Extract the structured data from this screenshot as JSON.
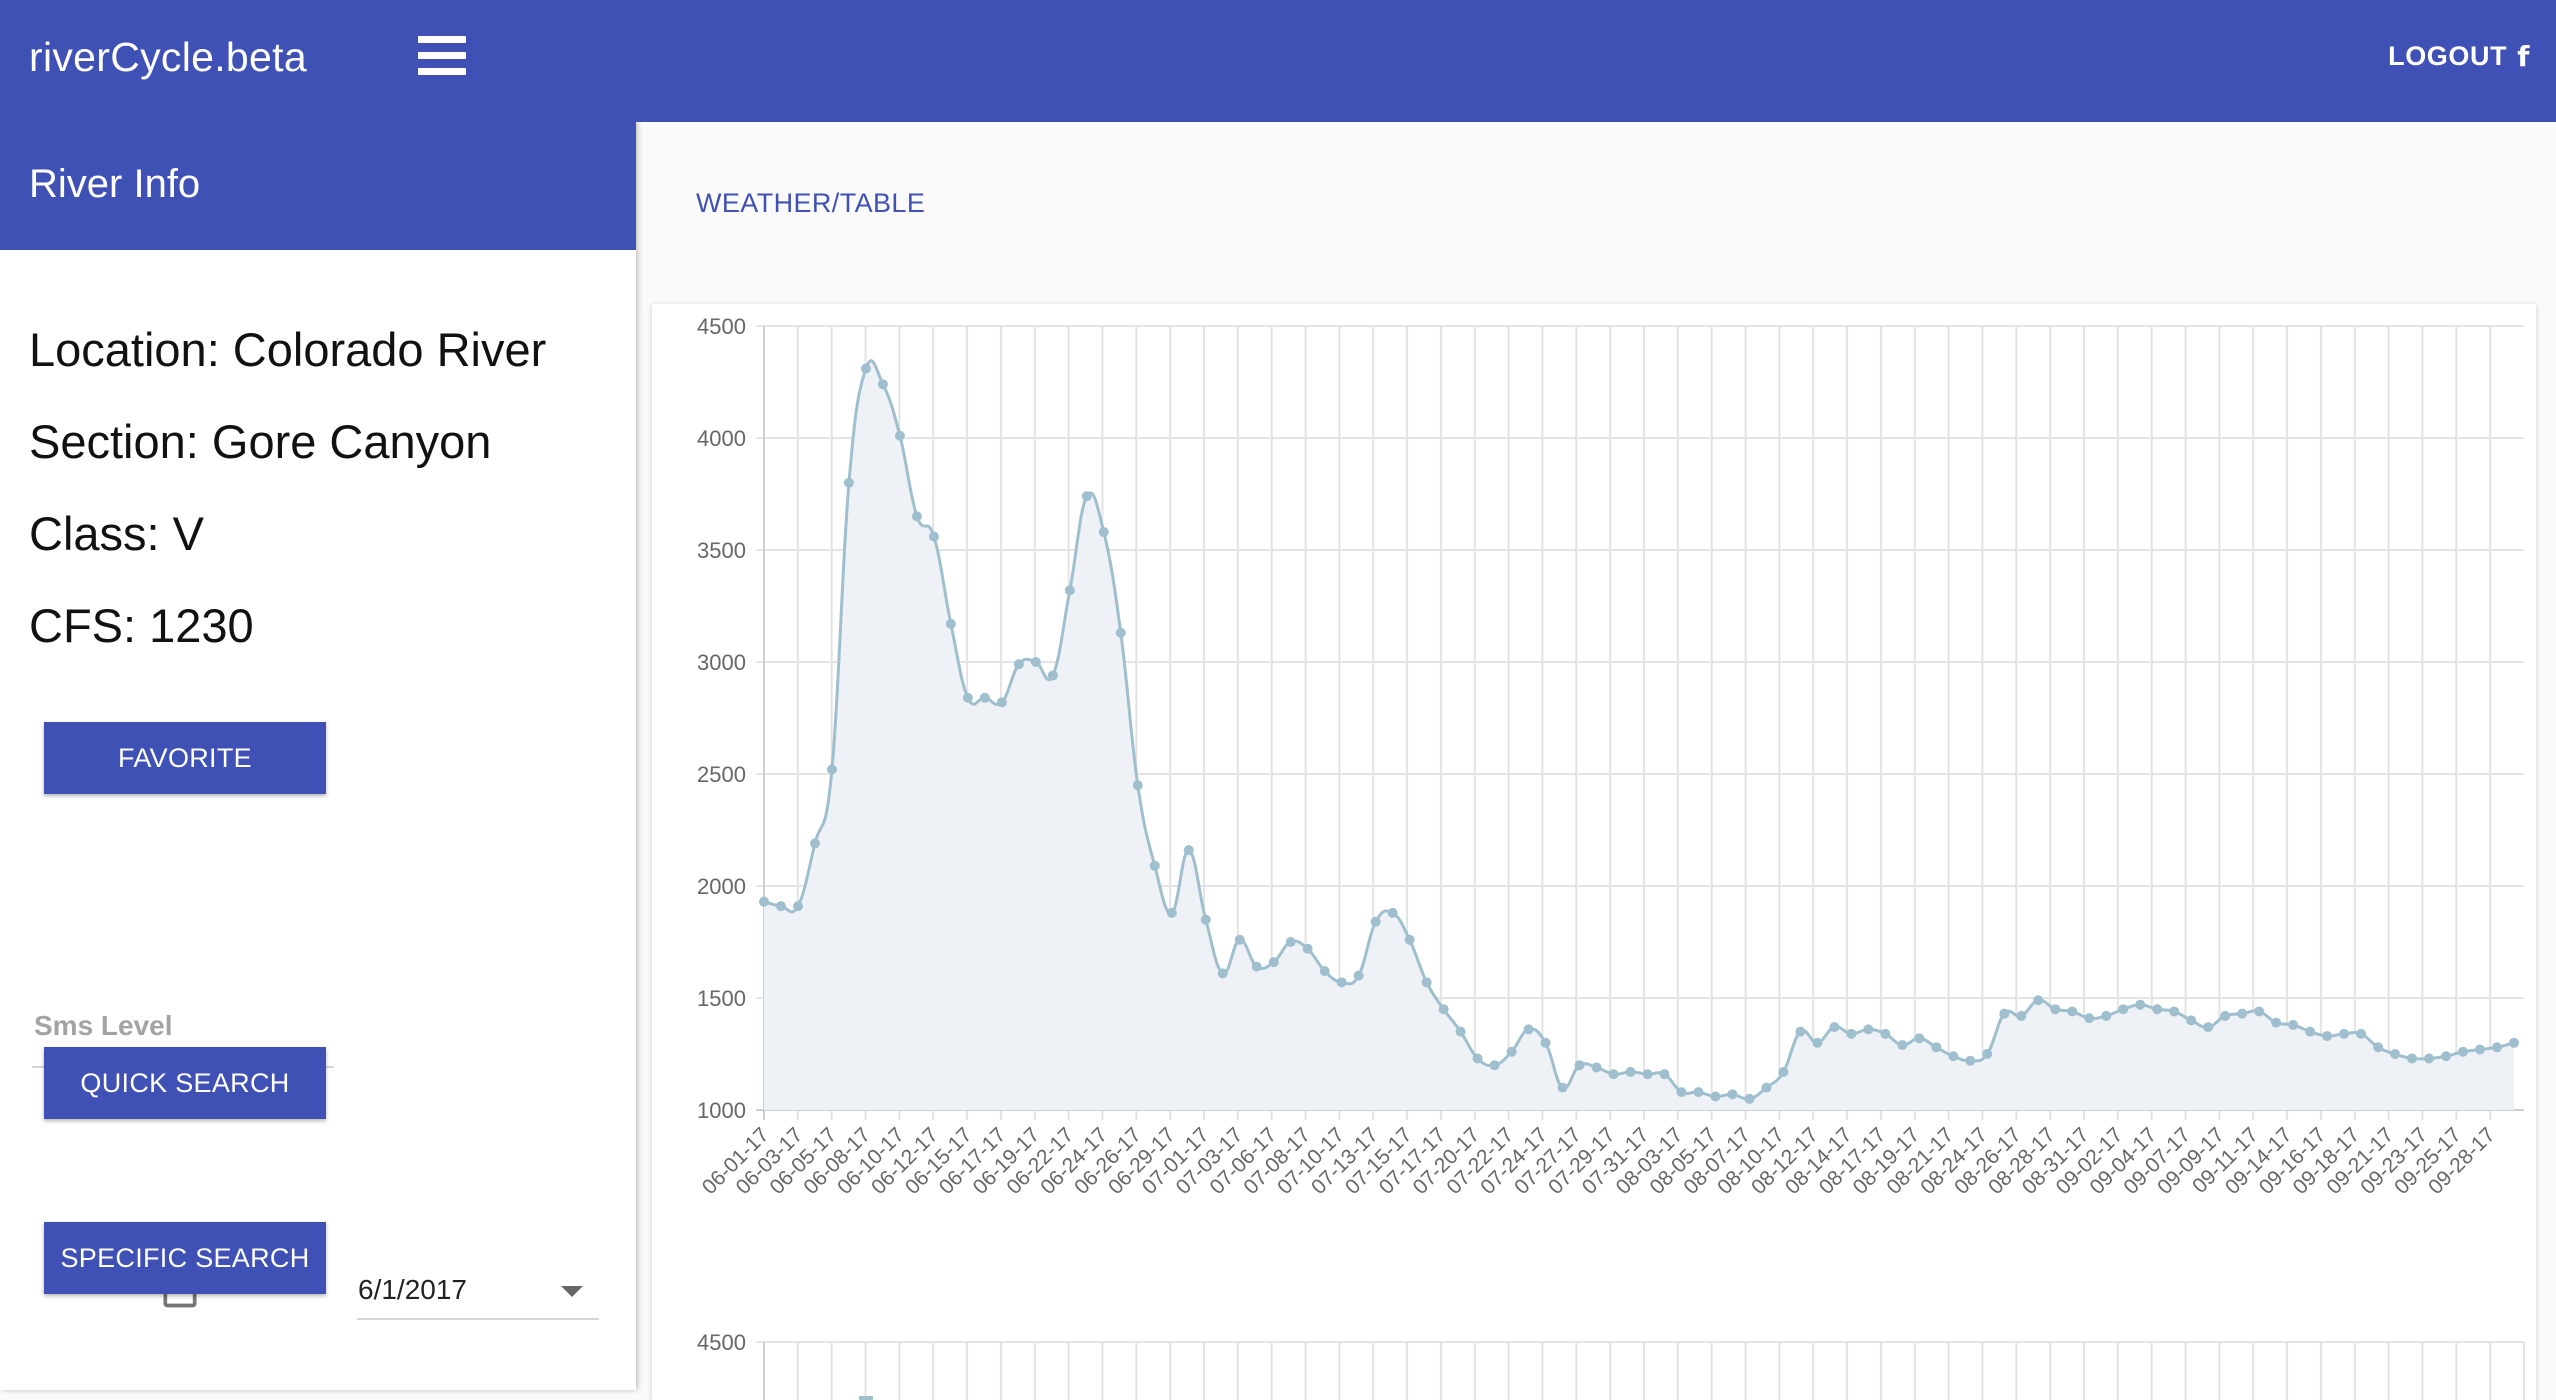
{
  "app": {
    "title": "riverCycle.beta",
    "logout_label": "LOGOUT",
    "facebook_glyph": "f",
    "menu_icon": "hamburger-menu-icon",
    "accent_color": "#3f51b5"
  },
  "sidebar": {
    "title": "River Info",
    "location": "Location: Colorado River",
    "section": "Section: Gore Canyon",
    "class": "Class: V",
    "cfs": "CFS: 1230",
    "favorite_label": "FAVORITE",
    "sms_placeholder": "Sms Level",
    "quick_search_label": "QUICK SEARCH",
    "calendar_icon": "calendar-icon",
    "date_value": "6/1/2017",
    "specific_search_label": "SPECIFIC SEARCH"
  },
  "main": {
    "tab_label": "WEATHER/TABLE"
  },
  "chart_data": {
    "type": "line",
    "fill": "area",
    "line_color": "#9fbfcf",
    "fill_color": "#eef2f6",
    "ylim": [
      1000,
      4500
    ],
    "yticks": [
      4500,
      4000,
      3500,
      3000,
      2500,
      2000,
      1500,
      1000
    ],
    "grid": true,
    "legend": "none",
    "xlabels": [
      "06-01-17",
      "06-03-17",
      "06-05-17",
      "06-08-17",
      "06-10-17",
      "06-12-17",
      "06-15-17",
      "06-17-17",
      "06-19-17",
      "06-22-17",
      "06-24-17",
      "06-26-17",
      "06-29-17",
      "07-01-17",
      "07-03-17",
      "07-06-17",
      "07-08-17",
      "07-10-17",
      "07-13-17",
      "07-15-17",
      "07-17-17",
      "07-20-17",
      "07-22-17",
      "07-24-17",
      "07-27-17",
      "07-29-17",
      "07-31-17",
      "08-03-17",
      "08-05-17",
      "08-07-17",
      "08-10-17",
      "08-12-17",
      "08-14-17",
      "08-17-17",
      "08-19-17",
      "08-21-17",
      "08-24-17",
      "08-26-17",
      "08-28-17",
      "08-31-17",
      "09-02-17",
      "09-04-17",
      "09-07-17",
      "09-09-17",
      "09-11-17",
      "09-14-17",
      "09-16-17",
      "09-18-17",
      "09-21-17",
      "09-23-17",
      "09-25-17",
      "09-28-17"
    ],
    "values": [
      1930,
      1910,
      1910,
      2190,
      2520,
      3800,
      4310,
      4240,
      4010,
      3650,
      3560,
      3170,
      2840,
      2840,
      2820,
      2990,
      3000,
      2940,
      3320,
      3740,
      3580,
      3130,
      2450,
      2090,
      1880,
      2160,
      1850,
      1610,
      1760,
      1640,
      1660,
      1750,
      1720,
      1620,
      1570,
      1600,
      1840,
      1880,
      1760,
      1570,
      1450,
      1350,
      1230,
      1200,
      1260,
      1360,
      1300,
      1100,
      1200,
      1190,
      1160,
      1170,
      1160,
      1160,
      1080,
      1080,
      1060,
      1070,
      1050,
      1100,
      1170,
      1350,
      1300,
      1370,
      1340,
      1360,
      1340,
      1290,
      1320,
      1280,
      1240,
      1220,
      1250,
      1430,
      1420,
      1490,
      1450,
      1440,
      1410,
      1420,
      1450,
      1470,
      1450,
      1440,
      1400,
      1370,
      1420,
      1430,
      1440,
      1390,
      1380,
      1350,
      1330,
      1340,
      1340,
      1280,
      1250,
      1230,
      1230,
      1240,
      1260,
      1270,
      1280,
      1300
    ],
    "mini_chart_peek": {
      "ytick": "4500"
    }
  }
}
